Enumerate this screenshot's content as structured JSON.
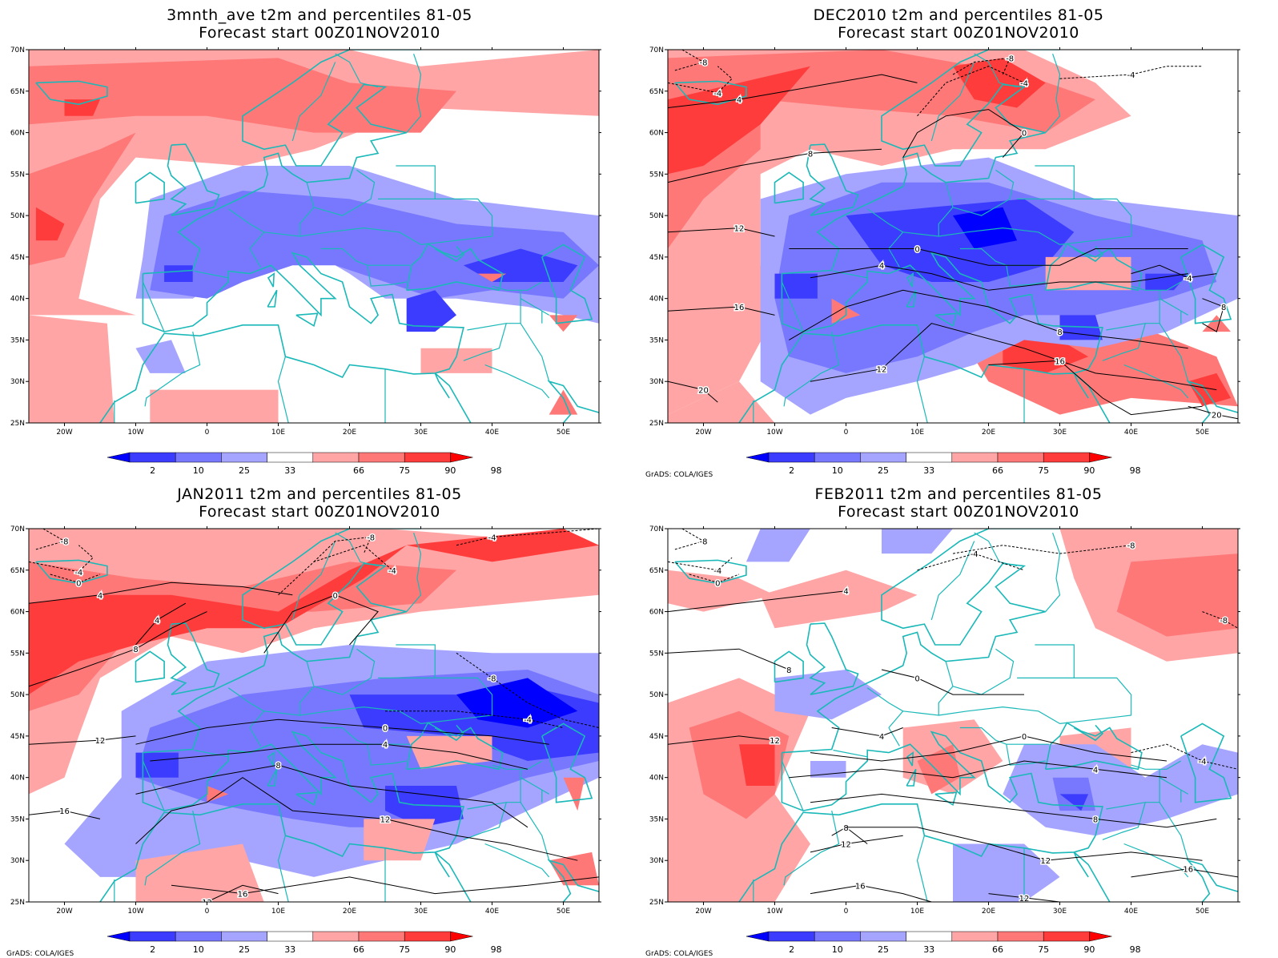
{
  "panels": [
    {
      "title": "3mnth_ave t2m and percentiles 81-05",
      "subtitle": "Forecast start 00Z01NOV2010",
      "contours": false,
      "credit": ""
    },
    {
      "title": "DEC2010 t2m and percentiles 81-05",
      "subtitle": "Forecast start 00Z01NOV2010",
      "contours": true,
      "credit": "GrADS: COLA/IGES"
    },
    {
      "title": "JAN2011 t2m and percentiles 81-05",
      "subtitle": "Forecast start 00Z01NOV2010",
      "contours": true,
      "credit": "GrADS: COLA/IGES"
    },
    {
      "title": "FEB2011 t2m and percentiles 81-05",
      "subtitle": "Forecast start 00Z01NOV2010",
      "contours": true,
      "credit": "GrADS: COLA/IGES"
    }
  ],
  "map": {
    "lon_labels": [
      "20W",
      "10W",
      "0",
      "10E",
      "20E",
      "30E",
      "40E",
      "50E"
    ],
    "lat_labels": [
      "70N",
      "65N",
      "60N",
      "55N",
      "50N",
      "45N",
      "40N",
      "35N",
      "30N",
      "25N"
    ],
    "lon_range": [
      -25,
      55
    ],
    "lat_range": [
      25,
      70
    ],
    "coastline_color": "#1ab8b8"
  },
  "colorbar": {
    "labels": [
      "2",
      "10",
      "25",
      "33",
      "66",
      "75",
      "90",
      "98"
    ],
    "colors": [
      "#0000ff",
      "#3c3cff",
      "#7878ff",
      "#a5a5ff",
      "#ffffff",
      "#ffa5a5",
      "#ff7878",
      "#ff3c3c",
      "#ff0000"
    ]
  },
  "contour_labels": [
    "-8",
    "-4",
    "0",
    "4",
    "8",
    "12",
    "16",
    "20"
  ]
}
